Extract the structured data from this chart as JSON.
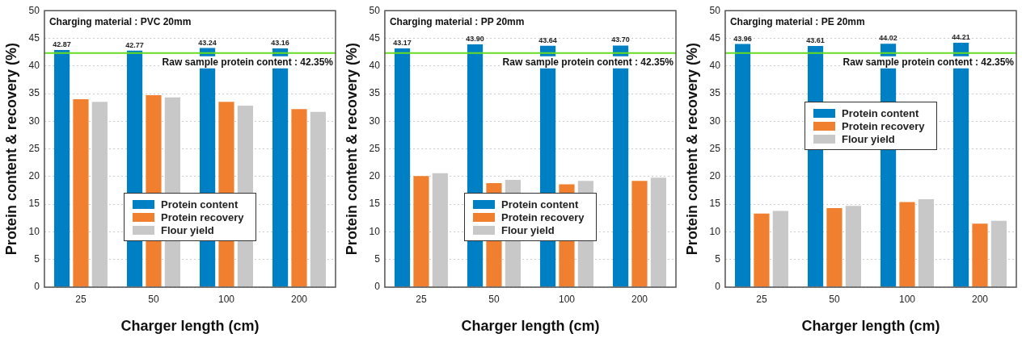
{
  "chart_data": [
    {
      "type": "bar",
      "title": "Charging material : PVC 20mm",
      "xlabel": "Charger length (cm)",
      "ylabel": "Protein content & recovery (%)",
      "categories": [
        "25",
        "50",
        "100",
        "200"
      ],
      "ylim": [
        0,
        50
      ],
      "yticks": [
        0,
        5,
        10,
        15,
        20,
        25,
        30,
        35,
        40,
        45,
        50
      ],
      "grid": "y",
      "legend": "bottom",
      "series": [
        {
          "name": "Protein content",
          "color": "#0080c4",
          "values": [
            42.87,
            42.77,
            43.24,
            43.16
          ],
          "value_labels": [
            "42.87",
            "42.77",
            "43.24",
            "43.16"
          ]
        },
        {
          "name": "Protein recovery",
          "color": "#f08030",
          "values": [
            34.0,
            34.7,
            33.5,
            32.2
          ]
        },
        {
          "name": "Flour yield",
          "color": "#c8c8c8",
          "values": [
            33.5,
            34.3,
            32.8,
            31.7
          ]
        }
      ],
      "ref_lines": [
        {
          "axis": "y",
          "value": 42.35,
          "label": "Raw sample protein content : 42.35%",
          "color": "#66dd22"
        }
      ]
    },
    {
      "type": "bar",
      "title": "Charging material : PP 20mm",
      "xlabel": "Charger length (cm)",
      "ylabel": "Protein content & recovery (%)",
      "categories": [
        "25",
        "50",
        "100",
        "200"
      ],
      "ylim": [
        0,
        50
      ],
      "yticks": [
        0,
        5,
        10,
        15,
        20,
        25,
        30,
        35,
        40,
        45,
        50
      ],
      "grid": "y",
      "legend": "bottom",
      "series": [
        {
          "name": "Protein content",
          "color": "#0080c4",
          "values": [
            43.17,
            43.9,
            43.64,
            43.7
          ],
          "value_labels": [
            "43.17",
            "43.90",
            "43.64",
            "43.70"
          ]
        },
        {
          "name": "Protein recovery",
          "color": "#f08030",
          "values": [
            20.1,
            18.8,
            18.6,
            19.2
          ]
        },
        {
          "name": "Flour yield",
          "color": "#c8c8c8",
          "values": [
            20.6,
            19.4,
            19.2,
            19.8
          ]
        }
      ],
      "ref_lines": [
        {
          "axis": "y",
          "value": 42.35,
          "label": "Raw sample protein content : 42.35%",
          "color": "#66dd22"
        }
      ]
    },
    {
      "type": "bar",
      "title": "Charging material : PE 20mm",
      "xlabel": "Charger length (cm)",
      "ylabel": "Protein content & recovery (%)",
      "categories": [
        "25",
        "50",
        "100",
        "200"
      ],
      "ylim": [
        0,
        50
      ],
      "yticks": [
        0,
        5,
        10,
        15,
        20,
        25,
        30,
        35,
        40,
        45,
        50
      ],
      "grid": "y",
      "legend": "center",
      "series": [
        {
          "name": "Protein content",
          "color": "#0080c4",
          "values": [
            43.96,
            43.61,
            44.02,
            44.21
          ],
          "value_labels": [
            "43.96",
            "43.61",
            "44.02",
            "44.21"
          ]
        },
        {
          "name": "Protein recovery",
          "color": "#f08030",
          "values": [
            13.3,
            14.3,
            15.4,
            11.5
          ]
        },
        {
          "name": "Flour yield",
          "color": "#c8c8c8",
          "values": [
            13.8,
            14.7,
            15.9,
            12.0
          ]
        }
      ],
      "ref_lines": [
        {
          "axis": "y",
          "value": 42.35,
          "label": "Raw sample protein content : 42.35%",
          "color": "#66dd22"
        }
      ]
    }
  ]
}
